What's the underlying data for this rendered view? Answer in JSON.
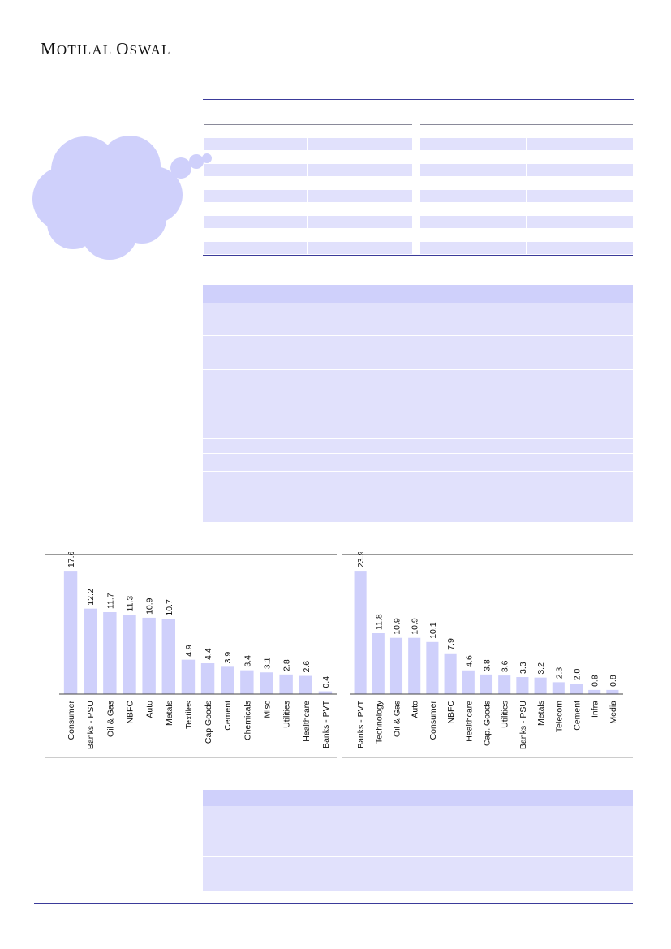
{
  "header": {
    "logo_first": "M",
    "logo_rest": "OTILAL",
    "logo_second_first": "O",
    "logo_second_rest": "SWAL"
  },
  "colors": {
    "accent_line": "#3b3b9a",
    "band": "#e1e1fc",
    "band_header": "#cfd0fb",
    "bar": "#cfd0fb",
    "cloud": "#cfd0fb"
  },
  "chart_data": [
    {
      "type": "bar",
      "categories": [
        "Consumer",
        "Banks - PSU",
        "Oil & Gas",
        "NBFC",
        "Auto",
        "Metals",
        "Textiles",
        "Cap Goods",
        "Cement",
        "Chemicals",
        "Misc",
        "Utilities",
        "Healthcare",
        "Banks - PVT"
      ],
      "values": [
        17.6,
        12.2,
        11.7,
        11.3,
        10.9,
        10.7,
        4.9,
        4.4,
        3.9,
        3.4,
        3.1,
        2.8,
        2.6,
        0.4
      ],
      "title": "",
      "xlabel": "",
      "ylabel": "",
      "ylim": [
        0,
        19
      ],
      "grid": false
    },
    {
      "type": "bar",
      "categories": [
        "Banks - PVT",
        "Technology",
        "Oil & Gas",
        "Auto",
        "Consumer",
        "NBFC",
        "Healthcare",
        "Cap. Goods",
        "Utilities",
        "Banks - PSU",
        "Metals",
        "Telecom",
        "Cement",
        "Infra",
        "Media"
      ],
      "values": [
        23.9,
        11.8,
        10.9,
        10.9,
        10.1,
        7.9,
        4.6,
        3.8,
        3.6,
        3.3,
        3.2,
        2.3,
        2.0,
        0.8,
        0.8
      ],
      "title": "",
      "xlabel": "",
      "ylabel": "",
      "ylim": [
        0,
        25.8
      ],
      "grid": false
    }
  ]
}
